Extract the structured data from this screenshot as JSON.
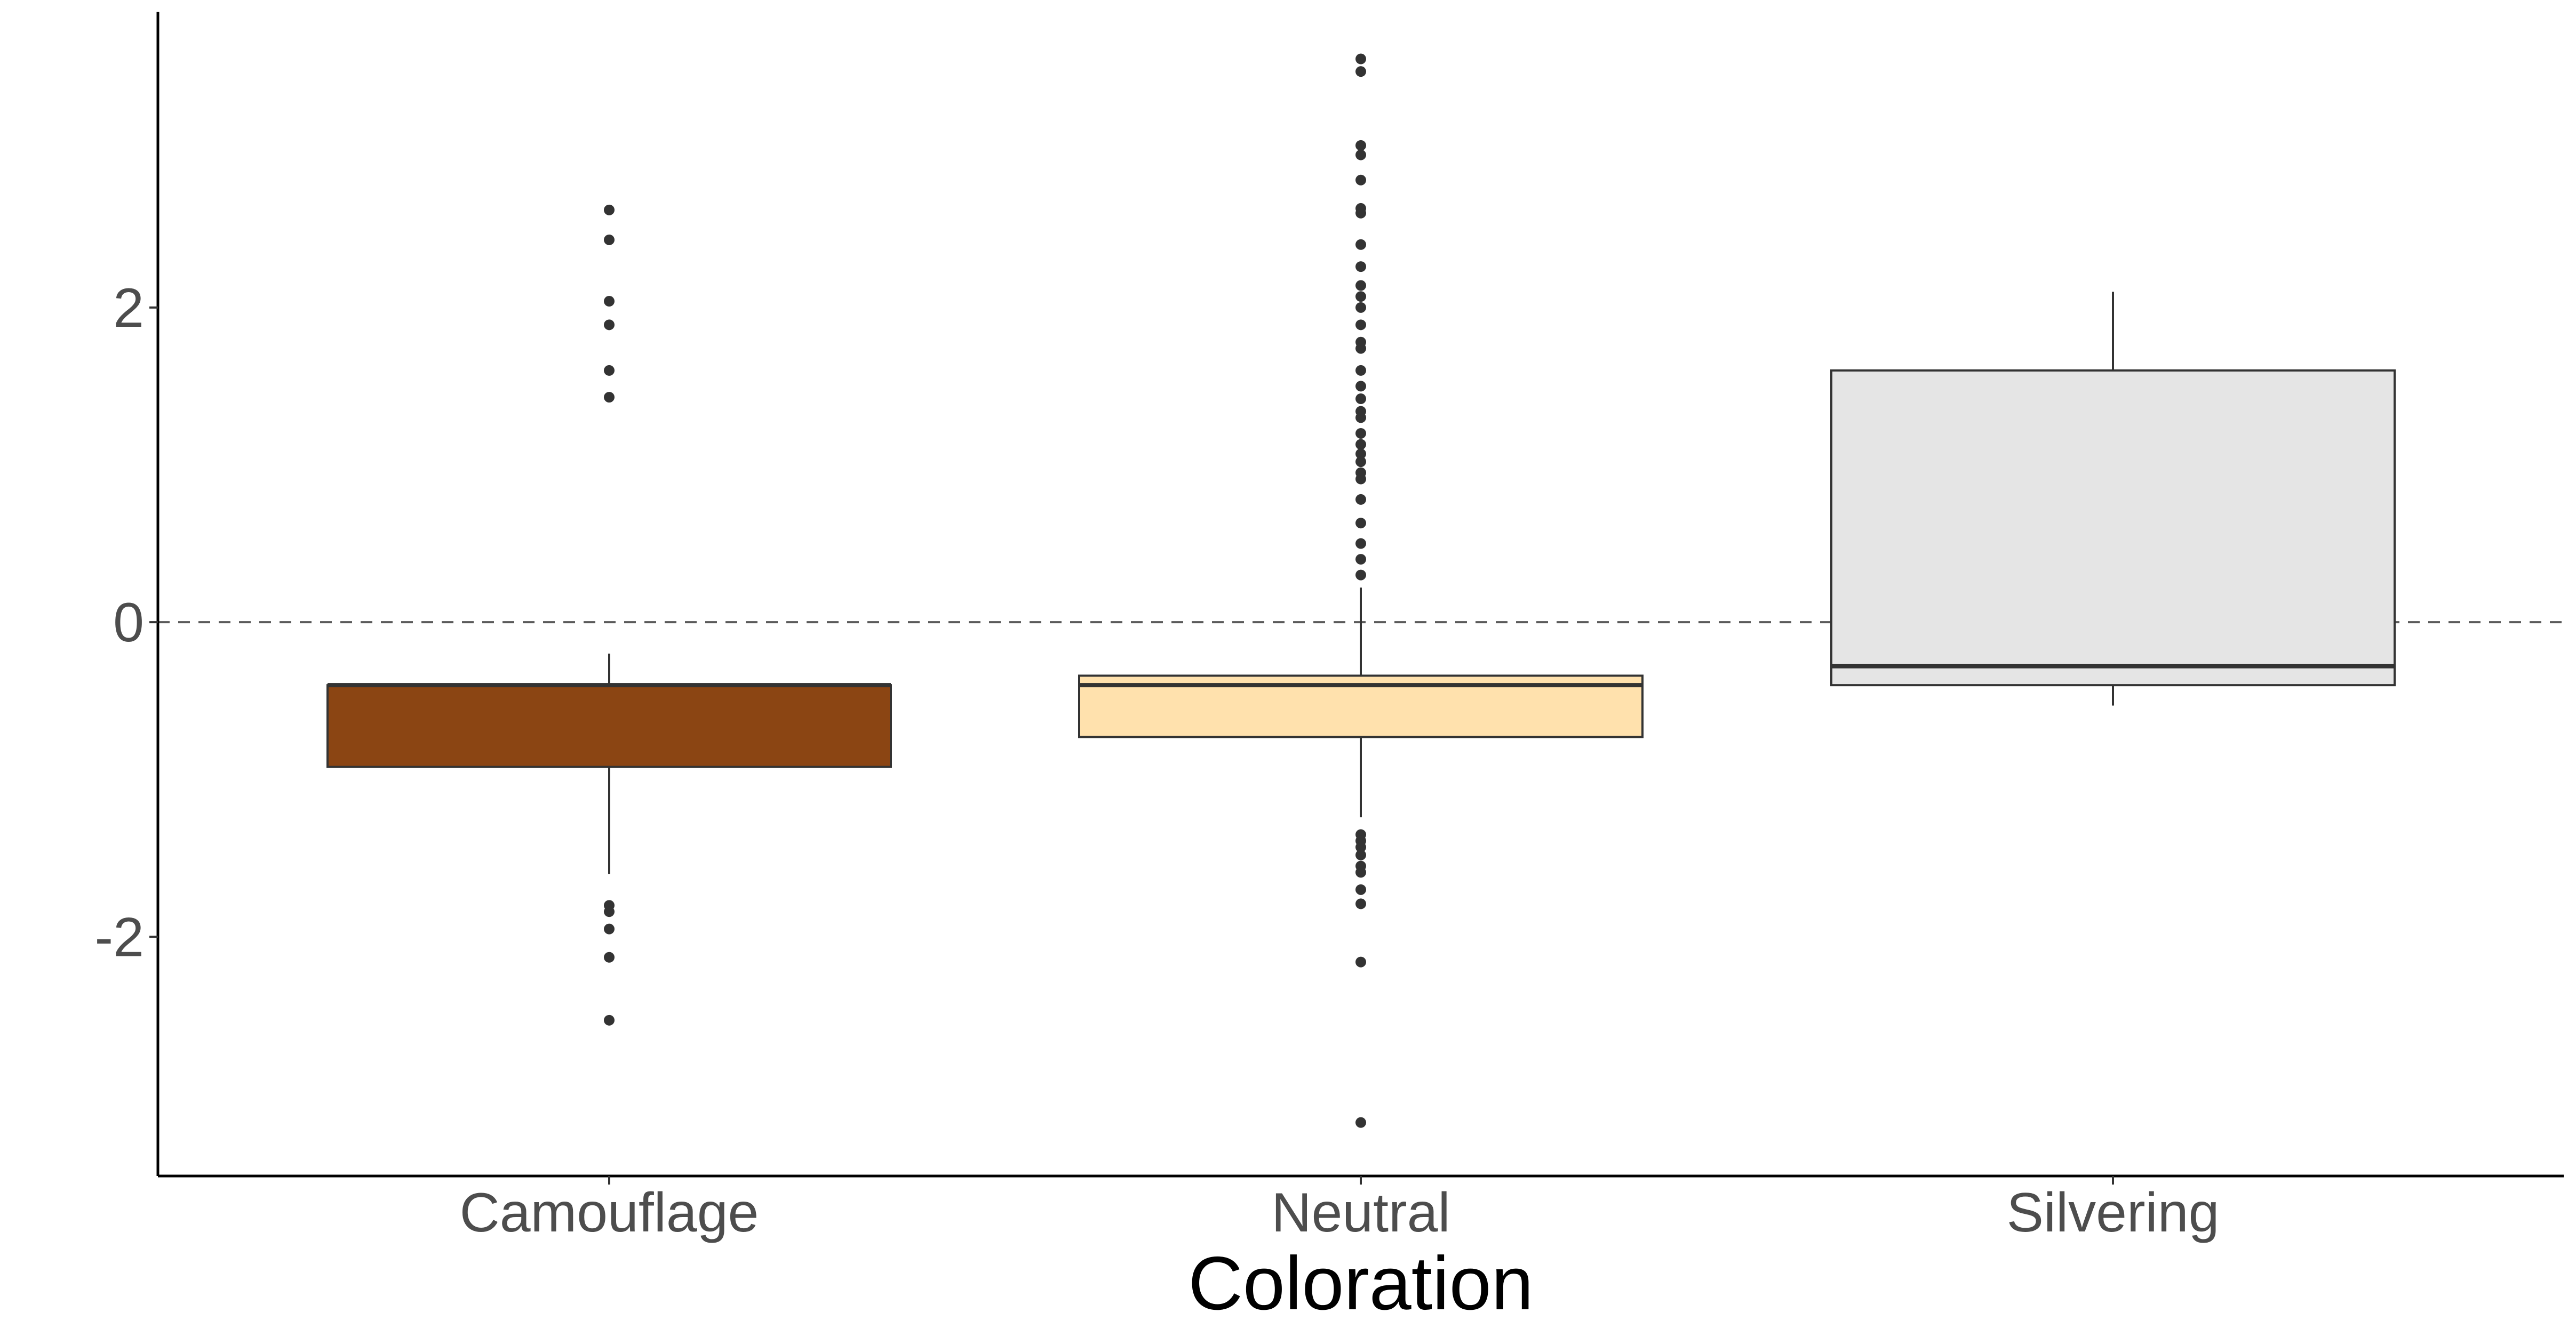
{
  "chart_data": {
    "type": "box",
    "title": "",
    "xlabel": "Coloration",
    "ylabel": "",
    "categories": [
      "Camouflage",
      "Neutral",
      "Silvering"
    ],
    "yticks": [
      {
        "value": 2,
        "label": "2"
      },
      {
        "value": 0,
        "label": "0"
      },
      {
        "value": -2,
        "label": "-2"
      }
    ],
    "ylim": [
      -3.52,
      3.88
    ],
    "reference_line": {
      "value": 0,
      "style": "dashed"
    },
    "grid": false,
    "series": [
      {
        "name": "Camouflage",
        "color": "#8B4513",
        "whisker_low": -1.6,
        "q1": -0.92,
        "median": -0.4,
        "q3": -0.4,
        "whisker_high": -0.2,
        "outliers": [
          2.62,
          2.43,
          2.04,
          1.89,
          1.6,
          1.43,
          -1.8,
          -1.84,
          -1.95,
          -2.13,
          -2.53
        ]
      },
      {
        "name": "Neutral",
        "color": "#FFE1AD",
        "whisker_low": -1.24,
        "q1": -0.73,
        "median": -0.4,
        "q3": -0.34,
        "whisker_high": 0.22,
        "outliers": [
          3.58,
          3.5,
          3.03,
          2.97,
          2.81,
          2.63,
          2.6,
          2.4,
          2.26,
          2.14,
          2.07,
          2.0,
          1.89,
          1.78,
          1.74,
          1.6,
          1.5,
          1.42,
          1.34,
          1.3,
          1.2,
          1.13,
          1.07,
          1.02,
          0.95,
          0.91,
          0.78,
          0.63,
          0.5,
          0.4,
          0.3,
          -1.35,
          -1.39,
          -1.43,
          -1.48,
          -1.55,
          -1.59,
          -1.7,
          -1.79,
          -2.16,
          -3.18
        ]
      },
      {
        "name": "Silvering",
        "color": "#E5E5E5",
        "whisker_low": -0.53,
        "q1": -0.4,
        "median": -0.28,
        "q3": 1.6,
        "whisker_high": 2.1,
        "outliers": []
      }
    ]
  }
}
